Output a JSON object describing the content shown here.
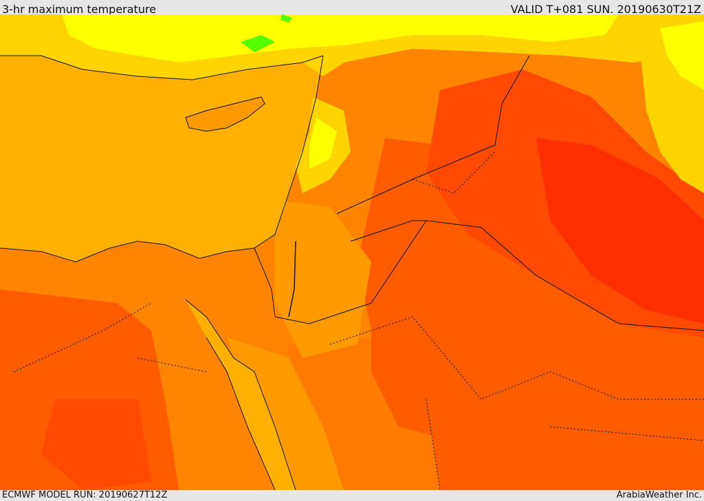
{
  "header": {
    "title": "3-hr maximum temperature",
    "valid": "VALID T+081 SUN. 20190630T21Z"
  },
  "footer": {
    "model_run": "ECMWF MODEL RUN: 20190627T12Z",
    "credit": "ArabiaWeather Inc."
  },
  "map": {
    "colors": {
      "sea": "#ffb000",
      "light_orange": "#ff9900",
      "orange": "#ff8400",
      "dark_orange": "#ff5c00",
      "red_orange": "#ff4a00",
      "red": "#ff2f00",
      "yellow": "#ffff00",
      "gold": "#ffd400",
      "green": "#55ff00",
      "coast": "#111111"
    }
  }
}
